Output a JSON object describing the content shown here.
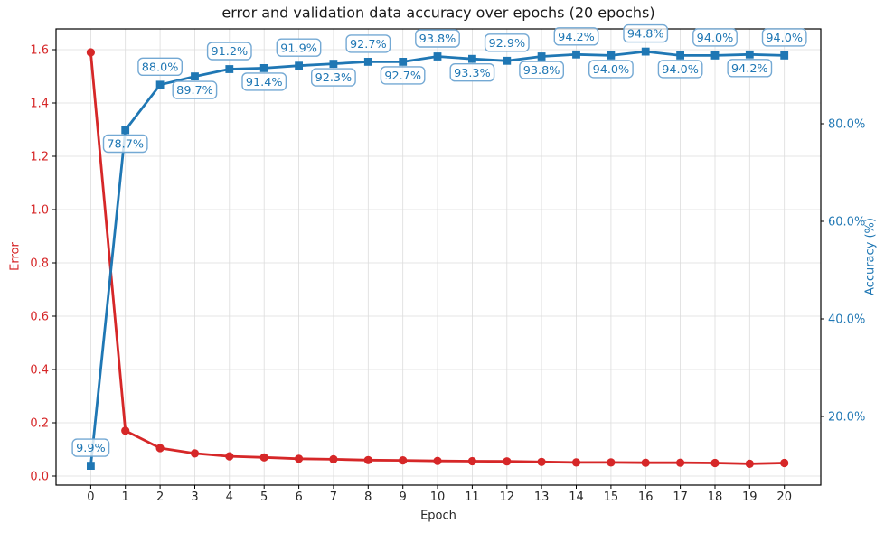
{
  "chart_data": {
    "type": "line",
    "title": "error and validation data accuracy over epochs (20 epochs)",
    "grid": true,
    "legend": "none",
    "x": [
      0,
      1,
      2,
      3,
      4,
      5,
      6,
      7,
      8,
      9,
      10,
      11,
      12,
      13,
      14,
      15,
      16,
      17,
      18,
      19,
      20
    ],
    "axes": {
      "x": {
        "label": "Epoch",
        "range": [
          -1,
          21.05
        ],
        "tick_values": [
          0,
          1,
          2,
          3,
          4,
          5,
          6,
          7,
          8,
          9,
          10,
          11,
          12,
          13,
          14,
          15,
          16,
          17,
          18,
          19,
          20
        ],
        "tick_labels": [
          "0",
          "1",
          "2",
          "3",
          "4",
          "5",
          "6",
          "7",
          "8",
          "9",
          "10",
          "11",
          "12",
          "13",
          "14",
          "15",
          "16",
          "17",
          "18",
          "19",
          "20"
        ]
      },
      "left": {
        "label": "Error",
        "color": "#d62728",
        "range": [
          -0.034,
          1.678
        ],
        "tick_values": [
          0.0,
          0.2,
          0.4,
          0.6,
          0.8,
          1.0,
          1.2,
          1.4,
          1.6
        ],
        "tick_labels": [
          "0.0",
          "0.2",
          "0.4",
          "0.6",
          "0.8",
          "1.0",
          "1.2",
          "1.4",
          "1.6"
        ]
      },
      "right": {
        "label": "Accuracy (%)",
        "color": "#1f77b4",
        "range": [
          5.93,
          99.44
        ],
        "tick_values": [
          20,
          40,
          60,
          80
        ],
        "tick_labels": [
          "20.0%",
          "40.0%",
          "60.0%",
          "80.0%"
        ]
      }
    },
    "series": [
      {
        "name": "Error",
        "axis": "left",
        "color": "#d62728",
        "marker": "circle",
        "values": [
          1.59,
          0.17,
          0.105,
          0.085,
          0.074,
          0.07,
          0.065,
          0.063,
          0.06,
          0.059,
          0.057,
          0.056,
          0.055,
          0.053,
          0.051,
          0.051,
          0.05,
          0.05,
          0.049,
          0.046,
          0.049
        ]
      },
      {
        "name": "Accuracy",
        "axis": "right",
        "color": "#1f77b4",
        "marker": "square",
        "values": [
          9.9,
          78.7,
          88.0,
          89.7,
          91.2,
          91.4,
          91.9,
          92.3,
          92.7,
          92.7,
          93.8,
          93.3,
          92.9,
          93.8,
          94.2,
          94.0,
          94.8,
          94.0,
          94.0,
          94.2,
          94.0
        ],
        "point_labels": [
          "9.9%",
          "78.7%",
          "88.0%",
          "89.7%",
          "91.2%",
          "91.4%",
          "91.9%",
          "92.3%",
          "92.7%",
          "92.7%",
          "93.8%",
          "93.3%",
          "92.9%",
          "93.8%",
          "94.2%",
          "94.0%",
          "94.8%",
          "94.0%",
          "94.0%",
          "94.2%",
          "94.0%"
        ],
        "label_placement": "even-above-odd-below"
      }
    ],
    "annotation_style": {
      "border_color": "#74a9d4",
      "text_color": "#1f77b4",
      "fill": "rgba(255,255,255,0.8)"
    },
    "style": {
      "grid_color": "#dcdcdc",
      "spine_color": "#000000",
      "background": "#ffffff"
    }
  }
}
